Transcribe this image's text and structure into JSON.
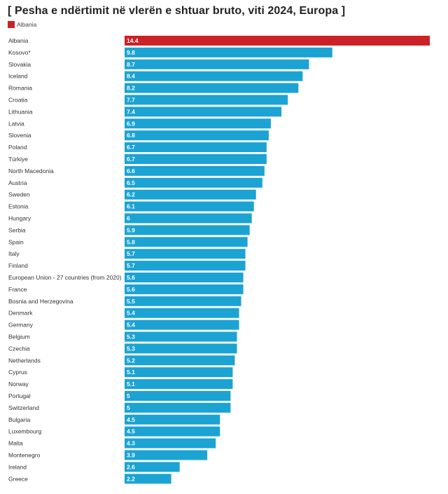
{
  "colors": {
    "highlight": "#cc2127",
    "default": "#1ba3d4"
  },
  "chart_data": {
    "type": "bar",
    "orientation": "horizontal",
    "title": "[ Pesha e ndërtimit në vlerën e shtuar bruto, viti 2024, Europa ]",
    "legend": [
      {
        "label": "Albania",
        "color": "#cc2127"
      }
    ],
    "highlight_category": "Albania",
    "categories": [
      "Albania",
      "Kosovo*",
      "Slovakia",
      "Iceland",
      "Romania",
      "Croatia",
      "Lithuania",
      "Latvia",
      "Slovenia",
      "Poland",
      "Türkiye",
      "North Macedonia",
      "Austria",
      "Sweden",
      "Estonia",
      "Hungary",
      "Serbia",
      "Spain",
      "Italy",
      "Finland",
      "European Union - 27 countries (from 2020)",
      "France",
      "Bosnia and Herzegovina",
      "Denmark",
      "Germany",
      "Belgium",
      "Czechia",
      "Netherlands",
      "Cyprus",
      "Norway",
      "Portugal",
      "Switzerland",
      "Bulgaria",
      "Luxembourg",
      "Malta",
      "Montenegro",
      "Ireland",
      "Greece"
    ],
    "values": [
      14.4,
      9.8,
      8.7,
      8.4,
      8.2,
      7.7,
      7.4,
      6.9,
      6.8,
      6.7,
      6.7,
      6.6,
      6.5,
      6.2,
      6.1,
      6,
      5.9,
      5.8,
      5.7,
      5.7,
      5.6,
      5.6,
      5.5,
      5.4,
      5.4,
      5.3,
      5.3,
      5.2,
      5.1,
      5.1,
      5,
      5,
      4.5,
      4.5,
      4.3,
      3.9,
      2.6,
      2.2
    ],
    "value_labels": [
      "14.4",
      "9.8",
      "8.7",
      "8.4",
      "8.2",
      "7.7",
      "7.4",
      "6.9",
      "6.8",
      "6.7",
      "6.7",
      "6.6",
      "6.5",
      "6.2",
      "6.1",
      "6",
      "5.9",
      "5.8",
      "5.7",
      "5.7",
      "5.6",
      "5.6",
      "5.5",
      "5.4",
      "5.4",
      "5.3",
      "5.3",
      "5.2",
      "5.1",
      "5.1",
      "5",
      "5",
      "4.5",
      "4.5",
      "4.3",
      "3.9",
      "2.6",
      "2.2"
    ],
    "xlim": [
      0,
      14.4
    ]
  }
}
